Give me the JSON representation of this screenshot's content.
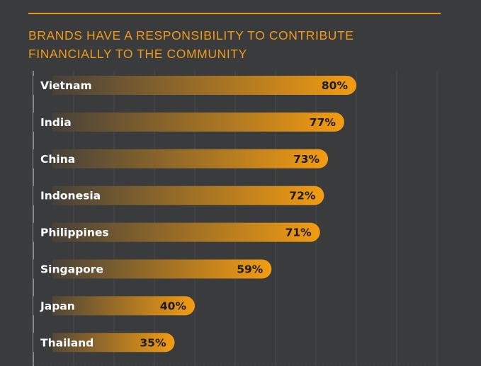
{
  "header": {
    "title_line1": "BRANDS HAVE A RESPONSIBILITY TO CONTRIBUTE",
    "title_line2": "FINANCIALLY TO THE COMMUNITY"
  },
  "colors": {
    "accent": "#f09a1c",
    "background": "#3a3b3d",
    "bar_start": "#3a3b3d",
    "bar_end": "#f39c12",
    "gridline": "#4a4b4e",
    "axis": "#8a8a8a"
  },
  "chart_data": {
    "type": "bar",
    "orientation": "horizontal",
    "title": "BRANDS HAVE A RESPONSIBILITY TO CONTRIBUTE FINANCIALLY TO THE COMMUNITY",
    "categories": [
      "Vietnam",
      "India",
      "China",
      "Indonesia",
      "Philippines",
      "Singapore",
      "Japan",
      "Thailand"
    ],
    "values": [
      80,
      77,
      73,
      72,
      71,
      59,
      40,
      35
    ],
    "value_labels": [
      "80%",
      "77%",
      "73%",
      "72%",
      "71%",
      "59%",
      "40%",
      "35%"
    ],
    "unit": "%",
    "xlim": [
      0,
      100
    ],
    "grid": true,
    "legend": "none"
  }
}
